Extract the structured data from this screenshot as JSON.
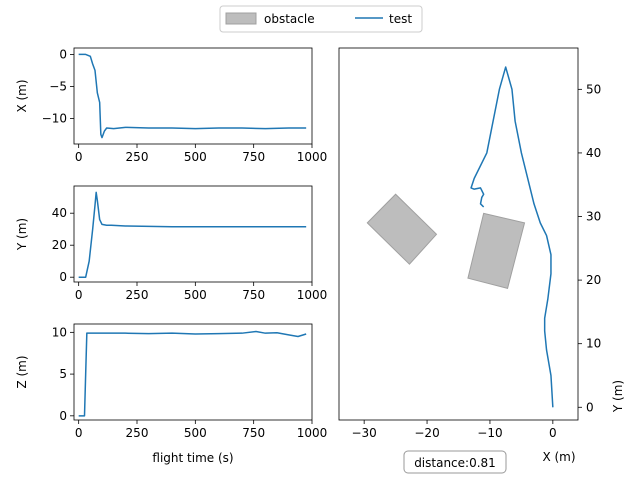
{
  "legend": {
    "obstacle_label": "obstacle",
    "test_label": "test",
    "obstacle_color": "#bdbdbd",
    "test_color": "#1f77b4"
  },
  "annotation": {
    "distance": "distance:0.81"
  },
  "chart_data": [
    {
      "type": "line",
      "panel": "x-vs-time",
      "ylabel": "X (m)",
      "xlabel": "",
      "xlim": [
        -20,
        1000
      ],
      "ylim": [
        -14,
        1
      ],
      "xticks": [
        0,
        250,
        500,
        750,
        1000
      ],
      "yticks": [
        0,
        -5,
        -10
      ],
      "series": [
        {
          "x": [
            0,
            30,
            50,
            60,
            70,
            80,
            90,
            95,
            100,
            110,
            120,
            150,
            200,
            300,
            400,
            500,
            600,
            700,
            800,
            900,
            975
          ],
          "y": [
            0,
            0,
            -0.3,
            -1.5,
            -2.5,
            -6,
            -7.5,
            -12.5,
            -13,
            -12,
            -11.5,
            -11.6,
            -11.4,
            -11.5,
            -11.5,
            -11.6,
            -11.5,
            -11.5,
            -11.6,
            -11.5,
            -11.5
          ]
        }
      ]
    },
    {
      "type": "line",
      "panel": "y-vs-time",
      "ylabel": "Y (m)",
      "xlabel": "",
      "xlim": [
        -20,
        1000
      ],
      "ylim": [
        -3,
        57
      ],
      "xticks": [
        0,
        250,
        500,
        750,
        1000
      ],
      "yticks": [
        0,
        20,
        40
      ],
      "series": [
        {
          "x": [
            0,
            20,
            30,
            45,
            60,
            70,
            75,
            80,
            90,
            100,
            120,
            140,
            200,
            400,
            600,
            800,
            975
          ],
          "y": [
            0,
            0,
            0,
            10,
            30,
            45,
            53,
            48,
            36,
            33,
            32.5,
            32.5,
            32,
            31.5,
            31.5,
            31.5,
            31.5
          ]
        }
      ]
    },
    {
      "type": "line",
      "panel": "z-vs-time",
      "ylabel": "Z (m)",
      "xlabel": "flight time (s)",
      "xlim": [
        -20,
        1000
      ],
      "ylim": [
        -0.5,
        11
      ],
      "xticks": [
        0,
        250,
        500,
        750,
        1000
      ],
      "yticks": [
        0,
        5,
        10
      ],
      "series": [
        {
          "x": [
            0,
            25,
            30,
            35,
            100,
            200,
            300,
            400,
            500,
            600,
            700,
            760,
            800,
            850,
            900,
            940,
            975
          ],
          "y": [
            0,
            0,
            5,
            9.9,
            9.9,
            9.9,
            9.85,
            9.9,
            9.8,
            9.85,
            9.9,
            10.1,
            9.9,
            9.95,
            9.7,
            9.5,
            9.8
          ]
        }
      ]
    },
    {
      "type": "line",
      "panel": "trajectory",
      "xlabel": "X (m)",
      "ylabel": "Y (m)",
      "xlim": [
        -34,
        4
      ],
      "ylim": [
        -2,
        56.5
      ],
      "xticks": [
        -30,
        -20,
        -10,
        0
      ],
      "yticks": [
        0,
        10,
        20,
        30,
        40,
        50
      ],
      "obstacles": [
        [
          [
            -29.5,
            29
          ],
          [
            -25,
            33.5
          ],
          [
            -18.5,
            27.2
          ],
          [
            -22.8,
            22.5
          ]
        ],
        [
          [
            -11,
            30.5
          ],
          [
            -4.5,
            29
          ],
          [
            -7.2,
            18.7
          ],
          [
            -13.5,
            20.3
          ]
        ]
      ],
      "series": [
        {
          "x": [
            0,
            -0.3,
            -1,
            -1.3,
            -1.3,
            -0.8,
            -0.3,
            -0.3,
            -1,
            -2,
            -3,
            -4,
            -5,
            -6,
            -6.5,
            -7.5,
            -8.5,
            -10.5,
            -12.5,
            -13,
            -12.5,
            -11.5,
            -11,
            -11.3,
            -11.5,
            -11
          ],
          "y": [
            0,
            5,
            9,
            12,
            14,
            17,
            21,
            24,
            27,
            29,
            32,
            36,
            40,
            45,
            50,
            53.5,
            50,
            40,
            36,
            34.5,
            34.3,
            34.5,
            33.5,
            33,
            32,
            31.5
          ]
        }
      ]
    }
  ]
}
